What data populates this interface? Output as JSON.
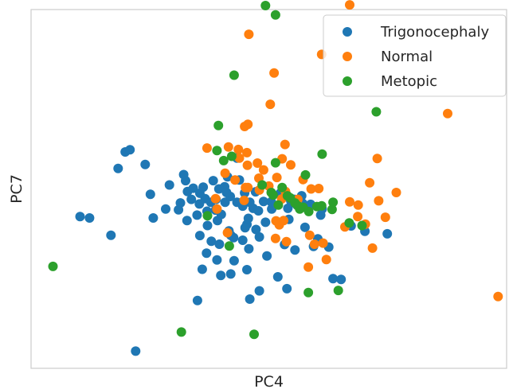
{
  "chart_data": {
    "type": "scatter",
    "title": "",
    "xlabel": "PC4",
    "ylabel": "PC7",
    "xlim": [
      0,
      100
    ],
    "ylim": [
      0,
      100
    ],
    "x_ticks": [],
    "y_ticks": [],
    "grid": false,
    "legend_position": "upper right",
    "series": [
      {
        "name": "Trigonocephaly",
        "color": "#1f77b4",
        "points": [
          [
            18.3,
            55.7
          ],
          [
            19.8,
            60.3
          ],
          [
            20.8,
            60.9
          ],
          [
            24.0,
            56.8
          ],
          [
            10.3,
            42.3
          ],
          [
            12.3,
            41.9
          ],
          [
            16.8,
            37.1
          ],
          [
            25.1,
            48.5
          ],
          [
            25.7,
            41.9
          ],
          [
            28.3,
            44.4
          ],
          [
            29.1,
            51.1
          ],
          [
            31.0,
            44.2
          ],
          [
            32.1,
            54.0
          ],
          [
            32.5,
            52.3
          ],
          [
            31.4,
            46.1
          ],
          [
            32.9,
            49.3
          ],
          [
            32.8,
            41.2
          ],
          [
            33.7,
            47.1
          ],
          [
            34.1,
            50.2
          ],
          [
            35.4,
            45.8
          ],
          [
            34.9,
            42.7
          ],
          [
            35.5,
            37.0
          ],
          [
            36.6,
            47.3
          ],
          [
            35.5,
            48.8
          ],
          [
            37.0,
            43.8
          ],
          [
            37.8,
            46.3
          ],
          [
            38.3,
            52.3
          ],
          [
            37.1,
            39.8
          ],
          [
            37.9,
            35.4
          ],
          [
            38.9,
            47.1
          ],
          [
            39.2,
            41.2
          ],
          [
            40.0,
            42.9
          ],
          [
            40.7,
            50.6
          ],
          [
            40.8,
            46.3
          ],
          [
            41.3,
            53.4
          ],
          [
            41.9,
            47.9
          ],
          [
            39.6,
            34.6
          ],
          [
            36.9,
            32.1
          ],
          [
            41.6,
            38.3
          ],
          [
            42.0,
            37.1
          ],
          [
            42.7,
            30.0
          ],
          [
            43.3,
            46.3
          ],
          [
            43.3,
            58.6
          ],
          [
            44.5,
            45.2
          ],
          [
            45.4,
            40.1
          ],
          [
            46.0,
            46.3
          ],
          [
            45.8,
            33.3
          ],
          [
            45.4,
            27.5
          ],
          [
            46.7,
            44.6
          ],
          [
            47.2,
            49.2
          ],
          [
            47.8,
            43.9
          ],
          [
            48.9,
            46.5
          ],
          [
            47.3,
            38.7
          ],
          [
            48.0,
            36.6
          ],
          [
            49.3,
            40.7
          ],
          [
            50.6,
            44.4
          ],
          [
            49.6,
            31.3
          ],
          [
            51.9,
            25.5
          ],
          [
            52.4,
            48.8
          ],
          [
            53.2,
            48.0
          ],
          [
            50.5,
            46.4
          ],
          [
            54.0,
            44.6
          ],
          [
            54.2,
            41.5
          ],
          [
            54.6,
            46.7
          ],
          [
            55.4,
            47.1
          ],
          [
            55.9,
            45.5
          ],
          [
            57.1,
            46.0
          ],
          [
            56.9,
            48.1
          ],
          [
            58.8,
            45.7
          ],
          [
            60.3,
            36.1
          ],
          [
            61.2,
            44.4
          ],
          [
            60.9,
            42.7
          ],
          [
            62.6,
            33.8
          ],
          [
            63.5,
            25.0
          ],
          [
            65.2,
            24.8
          ],
          [
            67.3,
            39.7
          ],
          [
            57.6,
            39.3
          ],
          [
            59.4,
            34.0
          ],
          [
            55.5,
            33.0
          ],
          [
            53.3,
            34.5
          ],
          [
            53.8,
            22.2
          ],
          [
            48.0,
            21.6
          ],
          [
            46.0,
            19.3
          ],
          [
            42.0,
            26.3
          ],
          [
            42.6,
            36.4
          ],
          [
            39.9,
            25.9
          ],
          [
            39.1,
            30.2
          ],
          [
            36.0,
            27.6
          ],
          [
            35.0,
            18.9
          ],
          [
            22.0,
            4.8
          ],
          [
            45.7,
            41.8
          ],
          [
            45.0,
            39.2
          ],
          [
            44.5,
            35.7
          ],
          [
            70.2,
            38.2
          ],
          [
            74.9,
            37.5
          ],
          [
            43.8,
            52.5
          ],
          [
            39.5,
            50.0
          ],
          [
            41.1,
            49.0
          ],
          [
            44.9,
            48.9
          ],
          [
            38.8,
            44.1
          ],
          [
            36.2,
            50.5
          ]
        ]
      },
      {
        "name": "Normal",
        "color": "#ff7f0e",
        "points": [
          [
            37.0,
            61.4
          ],
          [
            41.5,
            61.7
          ],
          [
            43.6,
            61.0
          ],
          [
            44.9,
            67.4
          ],
          [
            45.6,
            68.0
          ],
          [
            40.8,
            54.4
          ],
          [
            38.8,
            47.3
          ],
          [
            45.4,
            60.1
          ],
          [
            47.6,
            57.2
          ],
          [
            43.8,
            58.6
          ],
          [
            45.5,
            56.6
          ],
          [
            53.4,
            62.4
          ],
          [
            52.8,
            58.4
          ],
          [
            54.6,
            56.7
          ],
          [
            51.7,
            53.2
          ],
          [
            50.0,
            50.8
          ],
          [
            48.0,
            49.7
          ],
          [
            52.7,
            47.2
          ],
          [
            53.5,
            49.3
          ],
          [
            51.5,
            41.1
          ],
          [
            52.2,
            40.0
          ],
          [
            53.7,
            35.3
          ],
          [
            51.4,
            36.2
          ],
          [
            53.1,
            41.2
          ],
          [
            53.6,
            48.5
          ],
          [
            56.1,
            47.1
          ],
          [
            57.2,
            52.6
          ],
          [
            58.9,
            50.0
          ],
          [
            60.5,
            50.1
          ],
          [
            58.6,
            37.1
          ],
          [
            59.6,
            34.6
          ],
          [
            58.3,
            28.2
          ],
          [
            62.1,
            30.3
          ],
          [
            61.4,
            34.9
          ],
          [
            66.0,
            39.4
          ],
          [
            67.0,
            46.4
          ],
          [
            68.8,
            45.5
          ],
          [
            68.7,
            42.3
          ],
          [
            70.3,
            40.2
          ],
          [
            71.2,
            51.7
          ],
          [
            72.8,
            58.5
          ],
          [
            73.1,
            46.7
          ],
          [
            74.5,
            42.1
          ],
          [
            76.8,
            49.0
          ],
          [
            71.8,
            33.5
          ],
          [
            87.6,
            71.0
          ],
          [
            98.2,
            20.0
          ],
          [
            61.1,
            87.5
          ],
          [
            51.1,
            82.3
          ],
          [
            45.8,
            93.1
          ],
          [
            67.0,
            101.3
          ],
          [
            50.3,
            73.6
          ],
          [
            48.9,
            55.3
          ],
          [
            45.1,
            50.4
          ],
          [
            39.1,
            44.4
          ],
          [
            41.3,
            37.8
          ],
          [
            42.9,
            52.5
          ],
          [
            45.6,
            50.4
          ],
          [
            47.9,
            53.0
          ],
          [
            44.8,
            46.8
          ]
        ]
      },
      {
        "name": "Metopic",
        "color": "#2ca02c",
        "points": [
          [
            4.6,
            28.4
          ],
          [
            31.6,
            10.1
          ],
          [
            46.9,
            9.5
          ],
          [
            49.3,
            101.1
          ],
          [
            51.4,
            98.5
          ],
          [
            42.7,
            81.7
          ],
          [
            39.4,
            67.7
          ],
          [
            39.1,
            60.7
          ],
          [
            40.5,
            57.9
          ],
          [
            42.2,
            59.1
          ],
          [
            48.6,
            51.1
          ],
          [
            50.5,
            49.0
          ],
          [
            50.9,
            48.3
          ],
          [
            51.4,
            57.3
          ],
          [
            52.8,
            50.4
          ],
          [
            53.9,
            48.1
          ],
          [
            54.5,
            47.5
          ],
          [
            55.5,
            46.1
          ],
          [
            56.1,
            45.3
          ],
          [
            57.7,
            53.9
          ],
          [
            57.2,
            44.9
          ],
          [
            58.4,
            43.7
          ],
          [
            60.1,
            45.1
          ],
          [
            61.1,
            45.3
          ],
          [
            63.3,
            44.3
          ],
          [
            63.5,
            46.3
          ],
          [
            61.2,
            59.7
          ],
          [
            56.5,
            44.4
          ],
          [
            66.9,
            40.5
          ],
          [
            69.6,
            39.8
          ],
          [
            72.6,
            71.5
          ],
          [
            52.0,
            45.5
          ],
          [
            37.1,
            42.5
          ],
          [
            41.7,
            34.1
          ],
          [
            58.3,
            21.1
          ],
          [
            64.6,
            21.7
          ]
        ]
      }
    ]
  }
}
